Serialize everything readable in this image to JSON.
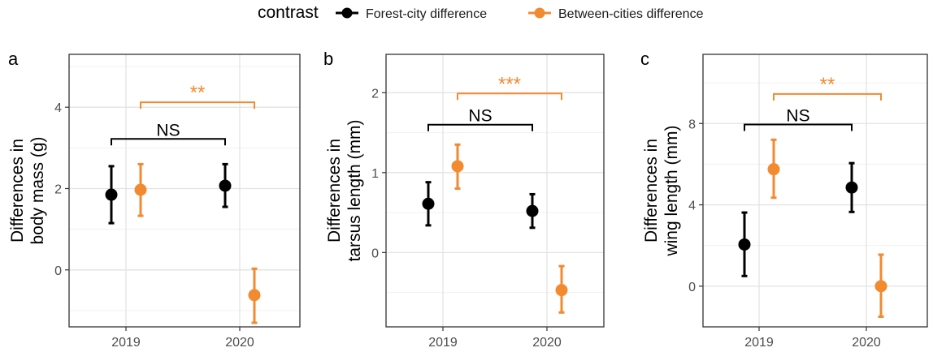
{
  "legend": {
    "title": "contrast",
    "entries": [
      {
        "label": "Forest-city difference",
        "color": "#000000"
      },
      {
        "label": "Between-cities difference",
        "color": "#f28a30"
      }
    ]
  },
  "colors": {
    "forest": "#000000",
    "between": "#f28a30"
  },
  "chart_data": [
    {
      "type": "scatter",
      "panel_label": "a",
      "ylabel": [
        "Differences in",
        "body mass (g)"
      ],
      "categories": [
        "2019",
        "2020"
      ],
      "ylim": [
        -1.4,
        5.3
      ],
      "yticks": [
        0,
        2,
        4
      ],
      "grid": true,
      "series": [
        {
          "name": "Forest-city difference",
          "values": [
            1.85,
            2.07
          ],
          "lower": [
            1.15,
            1.55
          ],
          "upper": [
            2.55,
            2.6
          ]
        },
        {
          "name": "Between-cities difference",
          "values": [
            1.97,
            -0.62
          ],
          "lower": [
            1.33,
            -1.3
          ],
          "upper": [
            2.6,
            0.03
          ]
        }
      ],
      "brackets": [
        {
          "label": "NS",
          "color": "#000000",
          "from": [
            "2019",
            "Forest-city difference"
          ],
          "to": [
            "2020",
            "Forest-city difference"
          ],
          "y": 3.22
        },
        {
          "label": "**",
          "color": "#f28a30",
          "from": [
            "2019",
            "Between-cities difference"
          ],
          "to": [
            "2020",
            "Between-cities difference"
          ],
          "y": 4.12
        }
      ]
    },
    {
      "type": "scatter",
      "panel_label": "b",
      "ylabel": [
        "Differences in",
        "tarsus length (mm)"
      ],
      "categories": [
        "2019",
        "2020"
      ],
      "ylim": [
        -0.93,
        2.48
      ],
      "yticks": [
        0,
        1,
        2
      ],
      "grid": true,
      "series": [
        {
          "name": "Forest-city difference",
          "values": [
            0.61,
            0.52
          ],
          "lower": [
            0.34,
            0.31
          ],
          "upper": [
            0.88,
            0.73
          ]
        },
        {
          "name": "Between-cities difference",
          "values": [
            1.08,
            -0.47
          ],
          "lower": [
            0.8,
            -0.75
          ],
          "upper": [
            1.35,
            -0.17
          ]
        }
      ],
      "brackets": [
        {
          "label": "NS",
          "color": "#000000",
          "from": [
            "2019",
            "Forest-city difference"
          ],
          "to": [
            "2020",
            "Forest-city difference"
          ],
          "y": 1.6
        },
        {
          "label": "***",
          "color": "#f28a30",
          "from": [
            "2019",
            "Between-cities difference"
          ],
          "to": [
            "2020",
            "Between-cities difference"
          ],
          "y": 1.99
        }
      ]
    },
    {
      "type": "scatter",
      "panel_label": "c",
      "ylabel": [
        "Differences in",
        "wing length (mm)"
      ],
      "categories": [
        "2019",
        "2020"
      ],
      "ylim": [
        -2.0,
        11.4
      ],
      "yticks": [
        0,
        4,
        8
      ],
      "grid": true,
      "series": [
        {
          "name": "Forest-city difference",
          "values": [
            2.05,
            4.85
          ],
          "lower": [
            0.5,
            3.65
          ],
          "upper": [
            3.62,
            6.05
          ]
        },
        {
          "name": "Between-cities difference",
          "values": [
            5.75,
            0.0
          ],
          "lower": [
            4.35,
            -1.5
          ],
          "upper": [
            7.2,
            1.55
          ]
        }
      ],
      "brackets": [
        {
          "label": "NS",
          "color": "#000000",
          "from": [
            "2019",
            "Forest-city difference"
          ],
          "to": [
            "2020",
            "Forest-city difference"
          ],
          "y": 7.95
        },
        {
          "label": "**",
          "color": "#f28a30",
          "from": [
            "2019",
            "Between-cities difference"
          ],
          "to": [
            "2020",
            "Between-cities difference"
          ],
          "y": 9.45
        }
      ]
    }
  ]
}
